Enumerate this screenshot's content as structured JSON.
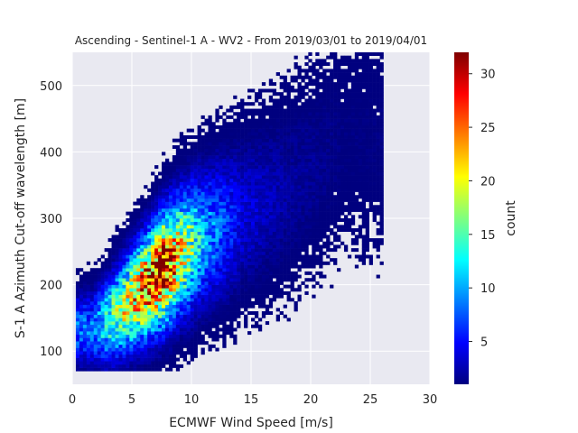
{
  "chart_data": {
    "type": "heatmap",
    "title": "Ascending - Sentinel-1 A - WV2 - From 2019/03/01 to 2019/04/01",
    "xlabel": "ECMWF Wind Speed [m/s]",
    "ylabel": "S-1 A Azimuth Cut-off wavelength [m]",
    "xlim": [
      0,
      30
    ],
    "ylim": [
      50,
      550
    ],
    "xticks": [
      0,
      5,
      10,
      15,
      20,
      25,
      30
    ],
    "yticks": [
      100,
      200,
      300,
      400,
      500
    ],
    "grid": true,
    "colorbar": {
      "label": "count",
      "range": [
        1,
        32
      ],
      "ticks": [
        5,
        10,
        15,
        20,
        25,
        30
      ],
      "colormap": [
        "#00007f",
        "#0000ff",
        "#007fff",
        "#00ffff",
        "#7fff7f",
        "#ffff00",
        "#ff7f00",
        "#ff0000",
        "#7f0000"
      ]
    },
    "density_ridge": [
      {
        "x": 1.5,
        "y": 130,
        "count": 8
      },
      {
        "x": 3,
        "y": 145,
        "count": 14
      },
      {
        "x": 4.5,
        "y": 170,
        "count": 20
      },
      {
        "x": 6,
        "y": 195,
        "count": 26
      },
      {
        "x": 7.5,
        "y": 220,
        "count": 30
      },
      {
        "x": 9,
        "y": 245,
        "count": 20
      },
      {
        "x": 11,
        "y": 270,
        "count": 10
      },
      {
        "x": 14,
        "y": 300,
        "count": 4
      },
      {
        "x": 18,
        "y": 340,
        "count": 2
      },
      {
        "x": 23,
        "y": 420,
        "count": 1
      }
    ]
  },
  "colors": {
    "axes_background": "#e9e9f1",
    "grid": "#ffffff",
    "text": "#262626"
  }
}
